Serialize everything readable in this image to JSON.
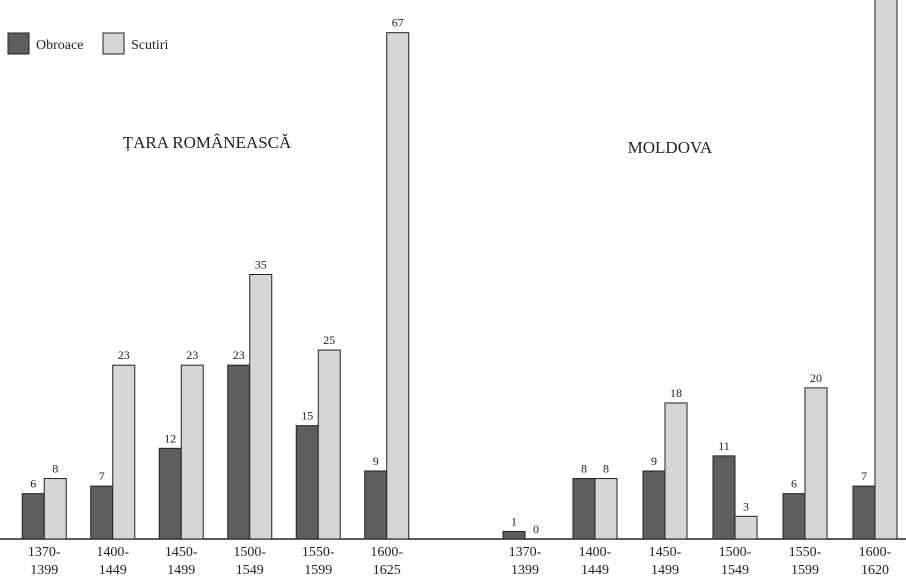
{
  "chart_data": [
    {
      "type": "bar",
      "title": "ȚARA ROMÂNEASCĂ",
      "categories": [
        [
          "1370-",
          "1399"
        ],
        [
          "1400-",
          "1449"
        ],
        [
          "1450-",
          "1499"
        ],
        [
          "1500-",
          "1549"
        ],
        [
          "1550-",
          "1599"
        ],
        [
          "1600-",
          "1625"
        ]
      ],
      "series": [
        {
          "name": "Obroace",
          "color": "#5e5e5e",
          "values": [
            6,
            7,
            12,
            23,
            15,
            9
          ]
        },
        {
          "name": "Scutiri",
          "color": "#d6d6d6",
          "values": [
            8,
            23,
            23,
            35,
            25,
            67
          ]
        }
      ],
      "ylim": [
        0,
        70
      ]
    },
    {
      "type": "bar",
      "title": "MOLDOVA",
      "categories": [
        [
          "1370-",
          "1399"
        ],
        [
          "1400-",
          "1449"
        ],
        [
          "1450-",
          "1499"
        ],
        [
          "1500-",
          "1549"
        ],
        [
          "1550-",
          "1599"
        ],
        [
          "1600-",
          "1620"
        ]
      ],
      "series": [
        {
          "name": "Obroace",
          "color": "#5e5e5e",
          "values": [
            1,
            8,
            9,
            11,
            6,
            7
          ]
        },
        {
          "name": "Scutiri",
          "color": "#d6d6d6",
          "values": [
            0,
            8,
            18,
            3,
            20,
            72
          ]
        }
      ],
      "ylim": [
        0,
        70
      ]
    }
  ]
}
